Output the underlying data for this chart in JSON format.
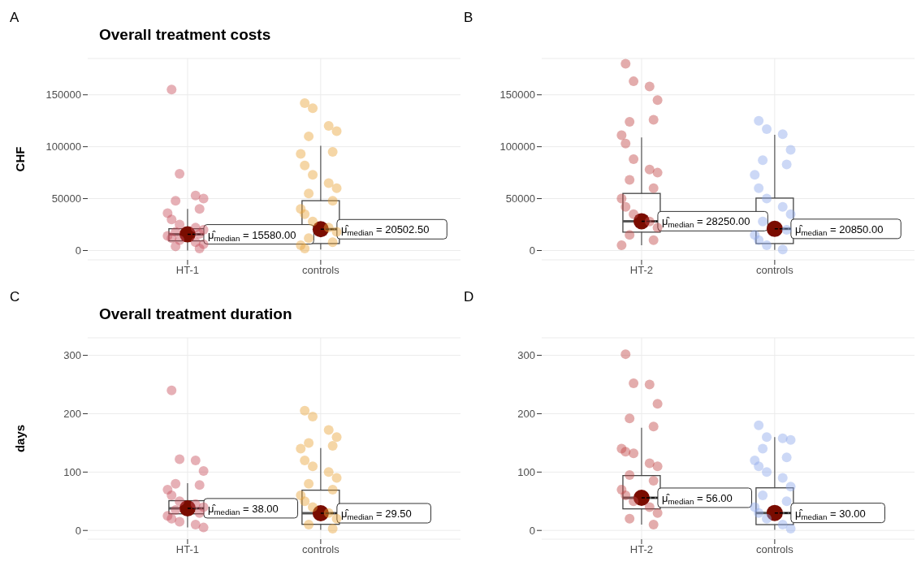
{
  "chart_data": [
    {
      "type": "box",
      "title": "Overall treatment costs",
      "ylabel": "CHF",
      "categories": [
        "HT-1",
        "controls"
      ],
      "ylim": [
        -9000,
        185000
      ],
      "yticks": [
        0,
        50000,
        100000,
        150000
      ],
      "grid": true,
      "marker": "circle",
      "boxes": [
        {
          "low": 0,
          "q1": 9300,
          "median": 15580,
          "q3": 21000,
          "high": 40000
        },
        {
          "low": 1000,
          "q1": 6700,
          "median": 20502.5,
          "q3": 48000,
          "high": 101000
        }
      ],
      "series": [
        {
          "type": "scatter",
          "color": "#c8505e",
          "x": [
            "HT-1",
            "HT-1",
            "HT-1",
            "HT-1",
            "HT-1",
            "HT-1",
            "HT-1",
            "HT-1",
            "HT-1",
            "HT-1",
            "HT-1",
            "HT-1",
            "HT-1",
            "HT-1",
            "HT-1",
            "HT-1",
            "HT-1",
            "HT-1",
            "HT-1",
            "HT-1"
          ],
          "values": [
            155000,
            74000,
            53000,
            50000,
            48000,
            40000,
            36000,
            30000,
            25000,
            22000,
            20000,
            18000,
            16000,
            14000,
            12000,
            10000,
            8000,
            6000,
            4000,
            2000
          ]
        },
        {
          "type": "scatter",
          "color": "#e9a43a",
          "x": [
            "controls",
            "controls",
            "controls",
            "controls",
            "controls",
            "controls",
            "controls",
            "controls",
            "controls",
            "controls",
            "controls",
            "controls",
            "controls",
            "controls",
            "controls",
            "controls",
            "controls",
            "controls",
            "controls",
            "controls",
            "controls",
            "controls"
          ],
          "values": [
            142000,
            137000,
            120000,
            115000,
            110000,
            95000,
            93000,
            82000,
            73000,
            65000,
            60000,
            55000,
            48000,
            40000,
            35000,
            28000,
            22000,
            18000,
            12000,
            8000,
            5000,
            2000
          ]
        },
        {
          "type": "scatter",
          "color": "#7a0c00",
          "x": [
            "HT-1",
            "controls"
          ],
          "values": [
            15580,
            20502.5
          ]
        }
      ],
      "annotations": [
        "A",
        {
          "text": "μ̂$_{median}$ = 15580.00",
          "x": "HT-1",
          "y": 15580
        },
        {
          "text": "μ̂$_{median}$ = 20502.50",
          "x": "controls",
          "y": 20502.5
        }
      ]
    },
    {
      "type": "box",
      "categories": [
        "HT-2",
        "controls"
      ],
      "ylim": [
        -9000,
        185000
      ],
      "yticks": [
        0,
        50000,
        100000,
        150000
      ],
      "grid": true,
      "marker": "circle",
      "boxes": [
        {
          "low": 5000,
          "q1": 17700,
          "median": 28250,
          "q3": 55000,
          "high": 109000
        },
        {
          "low": 500,
          "q1": 6700,
          "median": 20850,
          "q3": 50500,
          "high": 111500
        }
      ],
      "series": [
        {
          "type": "scatter",
          "color": "#c04848",
          "x": [
            "HT-2",
            "HT-2",
            "HT-2",
            "HT-2",
            "HT-2",
            "HT-2",
            "HT-2",
            "HT-2",
            "HT-2",
            "HT-2",
            "HT-2",
            "HT-2",
            "HT-2",
            "HT-2",
            "HT-2",
            "HT-2",
            "HT-2",
            "HT-2",
            "HT-2",
            "HT-2",
            "HT-2"
          ],
          "values": [
            180000,
            163000,
            158000,
            145000,
            124000,
            126000,
            111000,
            103000,
            88000,
            78000,
            75000,
            68000,
            60000,
            50000,
            42000,
            35000,
            28000,
            22000,
            15000,
            10000,
            5000
          ]
        },
        {
          "type": "scatter",
          "color": "#8ea8ec",
          "x": [
            "controls",
            "controls",
            "controls",
            "controls",
            "controls",
            "controls",
            "controls",
            "controls",
            "controls",
            "controls",
            "controls",
            "controls",
            "controls",
            "controls",
            "controls",
            "controls",
            "controls"
          ],
          "values": [
            125000,
            117000,
            112000,
            97000,
            87000,
            83000,
            73000,
            60000,
            50000,
            42000,
            35000,
            28000,
            20000,
            15000,
            10000,
            5000,
            1000
          ]
        },
        {
          "type": "scatter",
          "color": "#7a0c00",
          "x": [
            "HT-2",
            "controls"
          ],
          "values": [
            28250,
            20850
          ]
        }
      ],
      "annotations": [
        "B",
        {
          "text": "μ̂$_{median}$ = 28250.00",
          "x": "HT-2",
          "y": 28250
        },
        {
          "text": "μ̂$_{median}$ = 20850.00",
          "x": "controls",
          "y": 20850
        }
      ]
    },
    {
      "type": "box",
      "title": "Overall treatment duration",
      "ylabel": "days",
      "categories": [
        "HT-1",
        "controls"
      ],
      "ylim": [
        -15,
        330
      ],
      "yticks": [
        0,
        100,
        200,
        300
      ],
      "grid": true,
      "marker": "circle",
      "boxes": [
        {
          "low": 5,
          "q1": 28.5,
          "median": 38,
          "q3": 51,
          "high": 81
        },
        {
          "low": 1,
          "q1": 10.5,
          "median": 29.5,
          "q3": 69,
          "high": 141
        }
      ],
      "series": [
        {
          "type": "scatter",
          "color": "#c8505e",
          "x": [
            "HT-1",
            "HT-1",
            "HT-1",
            "HT-1",
            "HT-1",
            "HT-1",
            "HT-1",
            "HT-1",
            "HT-1",
            "HT-1",
            "HT-1",
            "HT-1",
            "HT-1",
            "HT-1",
            "HT-1",
            "HT-1",
            "HT-1",
            "HT-1"
          ],
          "values": [
            240,
            122,
            120,
            102,
            80,
            78,
            70,
            60,
            50,
            45,
            40,
            35,
            30,
            25,
            20,
            15,
            10,
            5
          ]
        },
        {
          "type": "scatter",
          "color": "#e9a43a",
          "x": [
            "controls",
            "controls",
            "controls",
            "controls",
            "controls",
            "controls",
            "controls",
            "controls",
            "controls",
            "controls",
            "controls",
            "controls",
            "controls",
            "controls",
            "controls",
            "controls",
            "controls",
            "controls",
            "controls",
            "controls"
          ],
          "values": [
            205,
            195,
            172,
            160,
            150,
            145,
            140,
            120,
            110,
            100,
            90,
            80,
            70,
            60,
            50,
            40,
            30,
            20,
            10,
            3
          ]
        },
        {
          "type": "scatter",
          "color": "#7a0c00",
          "x": [
            "HT-1",
            "controls"
          ],
          "values": [
            38,
            29.5
          ]
        }
      ],
      "annotations": [
        "C",
        {
          "text": "μ̂$_{median}$ = 38.00",
          "x": "HT-1",
          "y": 38
        },
        {
          "text": "μ̂$_{median}$ = 29.50",
          "x": "controls",
          "y": 29.5
        }
      ]
    },
    {
      "type": "box",
      "categories": [
        "HT-2",
        "controls"
      ],
      "ylim": [
        -15,
        330
      ],
      "yticks": [
        0,
        100,
        200,
        300
      ],
      "grid": true,
      "marker": "circle",
      "boxes": [
        {
          "low": 10,
          "q1": 37,
          "median": 56,
          "q3": 94,
          "high": 176
        },
        {
          "low": 1,
          "q1": 10,
          "median": 30,
          "q3": 73,
          "high": 160
        }
      ],
      "series": [
        {
          "type": "scatter",
          "color": "#c04848",
          "x": [
            "HT-2",
            "HT-2",
            "HT-2",
            "HT-2",
            "HT-2",
            "HT-2",
            "HT-2",
            "HT-2",
            "HT-2",
            "HT-2",
            "HT-2",
            "HT-2",
            "HT-2",
            "HT-2",
            "HT-2",
            "HT-2",
            "HT-2",
            "HT-2",
            "HT-2",
            "HT-2"
          ],
          "values": [
            302,
            252,
            250,
            217,
            192,
            178,
            140,
            135,
            132,
            115,
            110,
            95,
            85,
            70,
            60,
            50,
            40,
            30,
            20,
            10
          ]
        },
        {
          "type": "scatter",
          "color": "#8ea8ec",
          "x": [
            "controls",
            "controls",
            "controls",
            "controls",
            "controls",
            "controls",
            "controls",
            "controls",
            "controls",
            "controls",
            "controls",
            "controls",
            "controls",
            "controls",
            "controls",
            "controls",
            "controls",
            "controls"
          ],
          "values": [
            180,
            160,
            158,
            155,
            140,
            125,
            120,
            110,
            100,
            90,
            75,
            60,
            50,
            40,
            30,
            20,
            10,
            3
          ]
        },
        {
          "type": "scatter",
          "color": "#7a0c00",
          "x": [
            "HT-2",
            "controls"
          ],
          "values": [
            56,
            30
          ]
        }
      ],
      "annotations": [
        "D",
        {
          "text": "μ̂$_{median}$ = 56.00",
          "x": "HT-2",
          "y": 56
        },
        {
          "text": "μ̂$_{median}$ = 30.00",
          "x": "controls",
          "y": 30
        }
      ]
    }
  ]
}
